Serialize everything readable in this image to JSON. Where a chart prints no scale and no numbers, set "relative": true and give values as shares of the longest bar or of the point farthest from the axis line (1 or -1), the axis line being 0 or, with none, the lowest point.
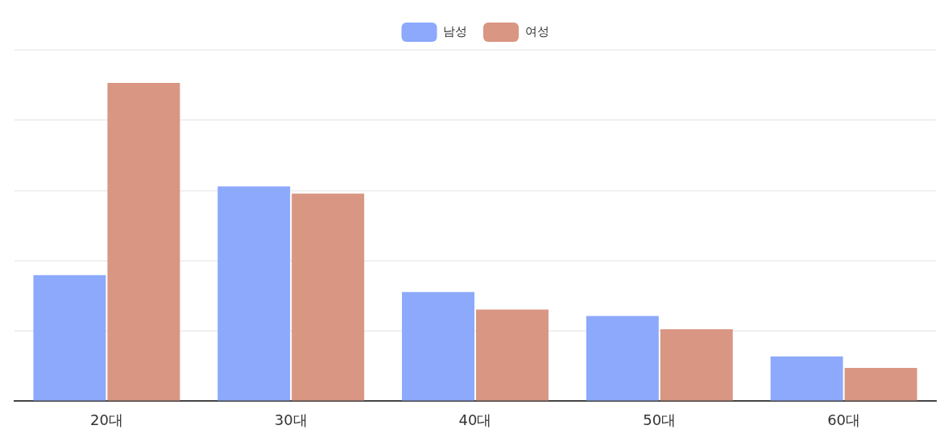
{
  "chart_data": {
    "type": "bar",
    "categories": [
      "20대",
      "30대",
      "40대",
      "50대",
      "60대"
    ],
    "series": [
      {
        "name": "남성",
        "color": "#8ca9fb",
        "values": [
          0.396,
          0.675,
          0.343,
          0.268,
          0.141
        ]
      },
      {
        "name": "여성",
        "color": "#d99682",
        "values": [
          1,
          0.652,
          0.288,
          0.226,
          0.105
        ]
      }
    ],
    "relative": true,
    "grid": "y",
    "legend": "top"
  }
}
